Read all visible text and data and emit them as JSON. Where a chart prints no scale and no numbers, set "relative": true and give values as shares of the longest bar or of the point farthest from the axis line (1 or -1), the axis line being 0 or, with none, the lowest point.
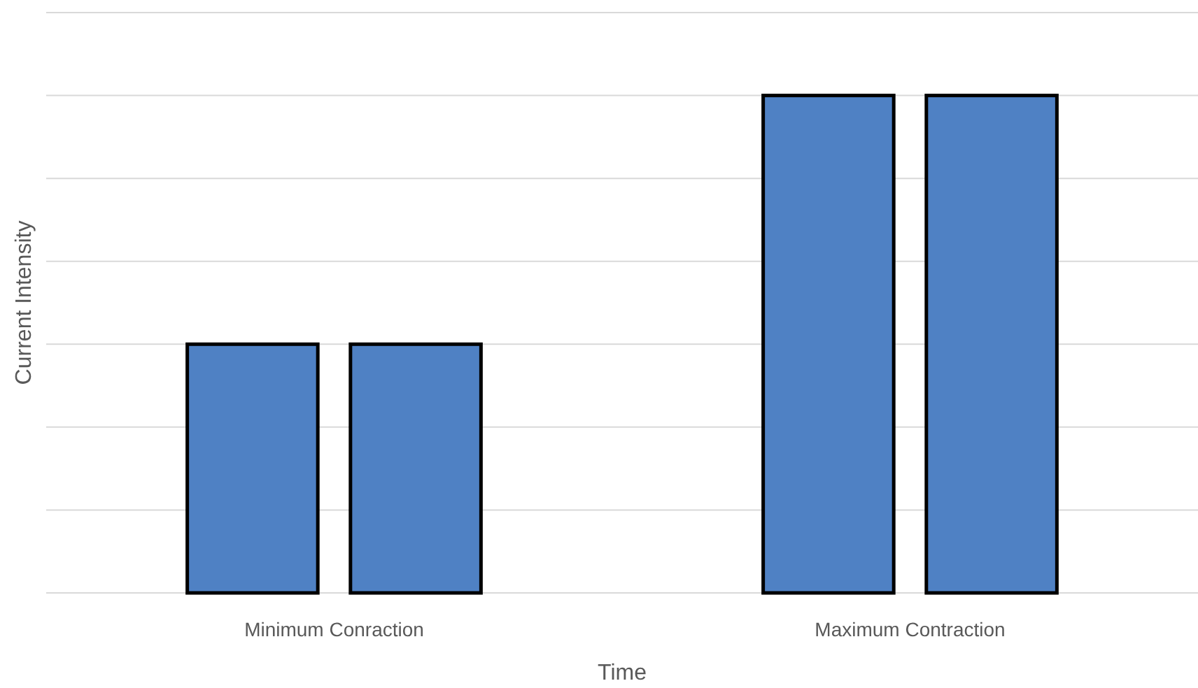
{
  "chart_data": {
    "type": "bar",
    "relative": true,
    "xlabel": "Time",
    "ylabel": "Current Intensity",
    "categories": [
      "Minimum Conraction",
      "Maximum Contraction"
    ],
    "series": [
      {
        "color": "#4f81c4",
        "values": [
          0.5,
          1
        ]
      },
      {
        "color": "#4f81c4",
        "values": [
          0.5,
          1
        ]
      }
    ],
    "grid": true
  }
}
